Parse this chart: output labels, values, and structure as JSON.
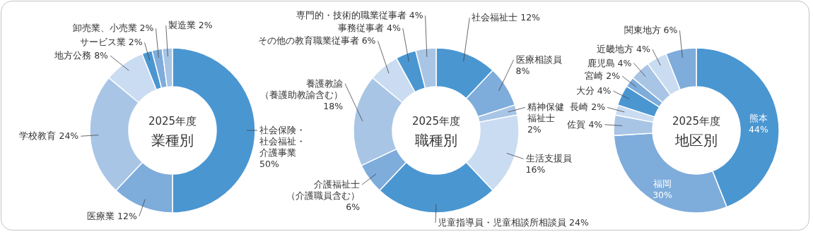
{
  "chart_data": [
    {
      "type": "donut",
      "title": "2025年度",
      "subtitle": "業種別",
      "categories": [
        "社会保険・社会福祉・介護事業",
        "医療業",
        "学校教育",
        "地方公務",
        "サービス業",
        "卸売業、小売業",
        "製造業"
      ],
      "values": [
        50,
        12,
        24,
        8,
        2,
        2,
        2
      ],
      "value_labels": [
        "50%",
        "12%",
        "24%",
        "8%",
        "2%",
        "2%",
        "2%"
      ],
      "colors": [
        "#4a96d1",
        "#7eacdb",
        "#a8c5e6",
        "#cadcf1",
        "#4a96d1",
        "#7eacdb",
        "#a8c5e6"
      ]
    },
    {
      "type": "donut",
      "title": "2025年度",
      "subtitle": "職種別",
      "categories": [
        "社会福祉士",
        "医療相談員",
        "精神保健福祉士",
        "生活支援員",
        "児童指導員・児童相談所相談員",
        "介護福祉士（介護職員含む）",
        "養護教諭（養護助教諭含む）",
        "その他の教育職業従事者",
        "事務従事者",
        "専門的・技術的職業従事者"
      ],
      "values": [
        12,
        8,
        2,
        16,
        24,
        6,
        18,
        6,
        4,
        4
      ],
      "value_labels": [
        "12%",
        "8%",
        "2%",
        "16%",
        "24%",
        "6%",
        "18%",
        "6%",
        "4%",
        "4%"
      ],
      "colors": [
        "#4a96d1",
        "#7eacdb",
        "#a8c5e6",
        "#cadcf1",
        "#4a96d1",
        "#7eacdb",
        "#a8c5e6",
        "#cadcf1",
        "#4a96d1",
        "#a8c5e6"
      ]
    },
    {
      "type": "donut",
      "title": "2025年度",
      "subtitle": "地区別",
      "categories": [
        "熊本",
        "福岡",
        "佐賀",
        "長崎",
        "大分",
        "宮崎",
        "鹿児島",
        "近畿地方",
        "関東地方"
      ],
      "values": [
        44,
        30,
        4,
        2,
        4,
        2,
        4,
        4,
        6
      ],
      "value_labels": [
        "44%",
        "30%",
        "4%",
        "2%",
        "4%",
        "2%",
        "4%",
        "4%",
        "6%"
      ],
      "colors": [
        "#4a96d1",
        "#7eacdb",
        "#a8c5e6",
        "#cadcf1",
        "#4a96d1",
        "#7eacdb",
        "#a8c5e6",
        "#cadcf1",
        "#7eacdb"
      ]
    }
  ]
}
